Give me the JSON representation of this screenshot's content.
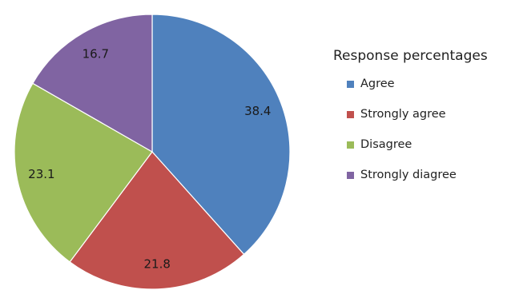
{
  "chart_data": {
    "type": "pie",
    "legend_title": "Response percentages",
    "legend_position": "right",
    "slices": [
      {
        "label": "Agree",
        "value": 38.4,
        "display": "38.4",
        "color": "#4f81bd"
      },
      {
        "label": "Strongly agree",
        "value": 21.8,
        "display": "21.8",
        "color": "#c0504d"
      },
      {
        "label": "Disagree",
        "value": 23.1,
        "display": "23.1",
        "color": "#9bbb59"
      },
      {
        "label": "Strongly diagree",
        "value": 16.7,
        "display": "16.7",
        "color": "#8064a2"
      }
    ]
  }
}
